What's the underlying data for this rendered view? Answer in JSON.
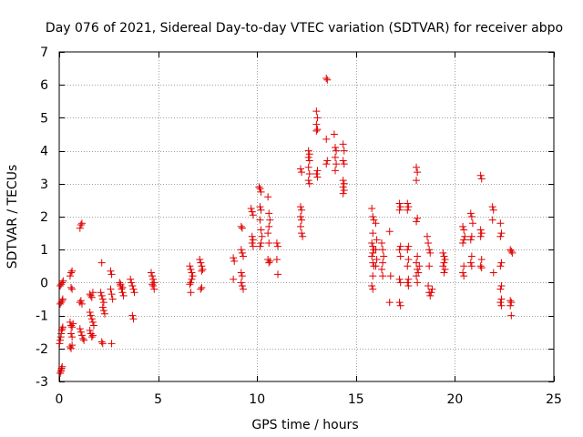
{
  "chart_data": {
    "type": "scatter",
    "title": "Day 076 of 2021, Sidereal Day-to-day VTEC variation (SDTVAR) for receiver abpo",
    "xlabel": "GPS time / hours",
    "ylabel": "SDTVAR / TECUs",
    "xlim": [
      0,
      25
    ],
    "ylim": [
      -3,
      7
    ],
    "xticks": [
      0,
      5,
      10,
      15,
      20,
      25
    ],
    "yticks": [
      -3,
      -2,
      -1,
      0,
      1,
      2,
      3,
      4,
      5,
      6,
      7
    ],
    "xtick_labels": [
      "0",
      "5",
      "10",
      "15",
      "20",
      "25"
    ],
    "ytick_labels": [
      "-3",
      "-2",
      "-1",
      "0",
      "1",
      "2",
      "3",
      "4",
      "5",
      "6",
      "7"
    ],
    "grid": true,
    "marker": "plus",
    "marker_color": "#e00000",
    "series": [
      {
        "name": "SDTVAR",
        "points": [
          [
            0.05,
            -2.75
          ],
          [
            0.08,
            -2.7
          ],
          [
            0.1,
            -2.65
          ],
          [
            0.12,
            -2.6
          ],
          [
            0.15,
            -2.55
          ],
          [
            0.02,
            -1.85
          ],
          [
            0.05,
            -1.75
          ],
          [
            0.08,
            -1.65
          ],
          [
            0.1,
            -1.55
          ],
          [
            0.12,
            -1.45
          ],
          [
            0.15,
            -1.4
          ],
          [
            0.18,
            -1.35
          ],
          [
            0.05,
            -0.65
          ],
          [
            0.1,
            -0.6
          ],
          [
            0.15,
            -0.55
          ],
          [
            0.18,
            -0.5
          ],
          [
            0.05,
            -0.1
          ],
          [
            0.1,
            -0.05
          ],
          [
            0.15,
            0.0
          ],
          [
            0.2,
            0.05
          ],
          [
            0.55,
            0.2
          ],
          [
            0.6,
            0.3
          ],
          [
            0.65,
            0.35
          ],
          [
            0.6,
            -0.15
          ],
          [
            0.65,
            -0.2
          ],
          [
            0.55,
            -1.2
          ],
          [
            0.6,
            -1.3
          ],
          [
            0.65,
            -1.35
          ],
          [
            0.7,
            -1.25
          ],
          [
            0.6,
            -1.55
          ],
          [
            0.65,
            -1.65
          ],
          [
            0.55,
            -1.95
          ],
          [
            0.6,
            -2.0
          ],
          [
            0.65,
            -1.9
          ],
          [
            1.05,
            1.65
          ],
          [
            1.1,
            1.75
          ],
          [
            1.15,
            1.8
          ],
          [
            1.05,
            -0.6
          ],
          [
            1.1,
            -0.55
          ],
          [
            1.15,
            -0.65
          ],
          [
            1.05,
            -1.4
          ],
          [
            1.1,
            -1.5
          ],
          [
            1.15,
            -1.6
          ],
          [
            1.2,
            -1.7
          ],
          [
            1.25,
            -1.75
          ],
          [
            1.55,
            -0.35
          ],
          [
            1.6,
            -0.4
          ],
          [
            1.65,
            -0.45
          ],
          [
            1.7,
            -0.3
          ],
          [
            1.55,
            -0.9
          ],
          [
            1.6,
            -1.0
          ],
          [
            1.65,
            -1.1
          ],
          [
            1.7,
            -1.2
          ],
          [
            1.75,
            -1.3
          ],
          [
            1.55,
            -1.45
          ],
          [
            1.6,
            -1.55
          ],
          [
            1.65,
            -1.65
          ],
          [
            1.7,
            -1.6
          ],
          [
            2.15,
            0.6
          ],
          [
            2.1,
            -0.3
          ],
          [
            2.15,
            -0.4
          ],
          [
            2.2,
            -0.5
          ],
          [
            2.25,
            -0.6
          ],
          [
            2.2,
            -0.75
          ],
          [
            2.25,
            -0.85
          ],
          [
            2.3,
            -0.95
          ],
          [
            2.15,
            -1.8
          ],
          [
            2.2,
            -1.85
          ],
          [
            2.6,
            0.35
          ],
          [
            2.65,
            0.25
          ],
          [
            2.6,
            -0.2
          ],
          [
            2.65,
            -0.35
          ],
          [
            2.7,
            -0.5
          ],
          [
            2.65,
            -1.85
          ],
          [
            3.05,
            0.0
          ],
          [
            3.1,
            -0.1
          ],
          [
            3.15,
            -0.2
          ],
          [
            3.2,
            -0.3
          ],
          [
            3.25,
            -0.4
          ],
          [
            3.1,
            -0.05
          ],
          [
            3.2,
            -0.15
          ],
          [
            3.6,
            0.1
          ],
          [
            3.65,
            0.0
          ],
          [
            3.7,
            -0.1
          ],
          [
            3.75,
            -0.2
          ],
          [
            3.8,
            -0.3
          ],
          [
            3.7,
            -1.0
          ],
          [
            3.75,
            -1.1
          ],
          [
            4.65,
            0.3
          ],
          [
            4.7,
            0.2
          ],
          [
            4.75,
            0.1
          ],
          [
            4.8,
            0.0
          ],
          [
            4.75,
            -0.1
          ],
          [
            4.8,
            -0.2
          ],
          [
            4.7,
            -0.05
          ],
          [
            6.6,
            0.5
          ],
          [
            6.65,
            0.4
          ],
          [
            6.7,
            0.3
          ],
          [
            6.75,
            0.2
          ],
          [
            6.7,
            0.1
          ],
          [
            6.65,
            0.0
          ],
          [
            6.6,
            -0.05
          ],
          [
            6.65,
            -0.3
          ],
          [
            7.1,
            0.7
          ],
          [
            7.15,
            0.6
          ],
          [
            7.2,
            0.5
          ],
          [
            7.25,
            0.4
          ],
          [
            7.2,
            0.35
          ],
          [
            7.15,
            -0.2
          ],
          [
            7.2,
            -0.15
          ],
          [
            8.8,
            0.75
          ],
          [
            8.85,
            0.65
          ],
          [
            8.8,
            0.1
          ],
          [
            9.2,
            1.7
          ],
          [
            9.25,
            1.65
          ],
          [
            9.2,
            1.0
          ],
          [
            9.25,
            0.9
          ],
          [
            9.3,
            0.8
          ],
          [
            9.2,
            0.3
          ],
          [
            9.25,
            0.2
          ],
          [
            9.2,
            0.0
          ],
          [
            9.25,
            -0.1
          ],
          [
            9.3,
            -0.2
          ],
          [
            9.7,
            2.25
          ],
          [
            9.75,
            2.15
          ],
          [
            9.8,
            2.05
          ],
          [
            9.75,
            1.4
          ],
          [
            9.8,
            1.3
          ],
          [
            9.75,
            1.2
          ],
          [
            9.8,
            1.1
          ],
          [
            10.1,
            2.9
          ],
          [
            10.15,
            2.85
          ],
          [
            10.2,
            2.75
          ],
          [
            10.15,
            2.3
          ],
          [
            10.2,
            2.2
          ],
          [
            10.15,
            1.9
          ],
          [
            10.2,
            1.6
          ],
          [
            10.25,
            1.4
          ],
          [
            10.2,
            1.2
          ],
          [
            10.15,
            1.1
          ],
          [
            10.55,
            2.6
          ],
          [
            10.6,
            2.1
          ],
          [
            10.65,
            1.9
          ],
          [
            10.6,
            1.7
          ],
          [
            10.55,
            1.5
          ],
          [
            10.6,
            1.2
          ],
          [
            10.55,
            0.7
          ],
          [
            10.6,
            0.6
          ],
          [
            10.65,
            0.65
          ],
          [
            11.0,
            1.2
          ],
          [
            11.05,
            1.1
          ],
          [
            11.0,
            0.7
          ],
          [
            11.05,
            0.25
          ],
          [
            12.2,
            3.45
          ],
          [
            12.25,
            3.35
          ],
          [
            12.2,
            2.3
          ],
          [
            12.25,
            2.2
          ],
          [
            12.2,
            2.0
          ],
          [
            12.25,
            1.9
          ],
          [
            12.2,
            1.7
          ],
          [
            12.25,
            1.5
          ],
          [
            12.3,
            1.4
          ],
          [
            12.6,
            4.0
          ],
          [
            12.65,
            3.9
          ],
          [
            12.6,
            3.8
          ],
          [
            12.65,
            3.7
          ],
          [
            12.6,
            3.5
          ],
          [
            12.65,
            3.3
          ],
          [
            12.6,
            3.1
          ],
          [
            12.65,
            3.0
          ],
          [
            13.0,
            5.2
          ],
          [
            13.05,
            5.0
          ],
          [
            13.0,
            4.8
          ],
          [
            13.05,
            4.65
          ],
          [
            13.0,
            4.6
          ],
          [
            13.05,
            3.4
          ],
          [
            13.0,
            3.3
          ],
          [
            13.05,
            3.2
          ],
          [
            13.5,
            6.2
          ],
          [
            13.55,
            6.15
          ],
          [
            13.5,
            4.35
          ],
          [
            13.55,
            3.7
          ],
          [
            13.5,
            3.6
          ],
          [
            13.9,
            4.5
          ],
          [
            13.95,
            4.1
          ],
          [
            14.0,
            4.0
          ],
          [
            13.95,
            3.8
          ],
          [
            14.0,
            3.6
          ],
          [
            13.95,
            3.4
          ],
          [
            14.35,
            4.2
          ],
          [
            14.4,
            4.0
          ],
          [
            14.35,
            3.7
          ],
          [
            14.4,
            3.6
          ],
          [
            14.35,
            3.1
          ],
          [
            14.4,
            3.0
          ],
          [
            14.35,
            2.9
          ],
          [
            14.4,
            2.8
          ],
          [
            14.35,
            2.7
          ],
          [
            15.8,
            2.25
          ],
          [
            15.85,
            2.0
          ],
          [
            15.9,
            1.9
          ],
          [
            15.85,
            1.5
          ],
          [
            15.8,
            1.2
          ],
          [
            15.85,
            1.1
          ],
          [
            15.9,
            1.0
          ],
          [
            15.85,
            0.9
          ],
          [
            15.8,
            0.8
          ],
          [
            15.85,
            0.6
          ],
          [
            15.9,
            0.5
          ],
          [
            15.85,
            0.2
          ],
          [
            15.8,
            -0.1
          ],
          [
            15.85,
            -0.2
          ],
          [
            16.0,
            1.8
          ],
          [
            16.05,
            1.3
          ],
          [
            16.0,
            1.0
          ],
          [
            16.05,
            0.7
          ],
          [
            16.0,
            0.5
          ],
          [
            16.3,
            1.2
          ],
          [
            16.35,
            1.0
          ],
          [
            16.4,
            0.8
          ],
          [
            16.35,
            0.6
          ],
          [
            16.3,
            0.4
          ],
          [
            16.35,
            0.2
          ],
          [
            16.7,
            1.55
          ],
          [
            16.75,
            0.2
          ],
          [
            16.7,
            -0.6
          ],
          [
            17.2,
            2.4
          ],
          [
            17.25,
            2.3
          ],
          [
            17.2,
            2.2
          ],
          [
            17.25,
            1.1
          ],
          [
            17.2,
            1.0
          ],
          [
            17.25,
            0.8
          ],
          [
            17.2,
            0.1
          ],
          [
            17.25,
            0.0
          ],
          [
            17.2,
            -0.6
          ],
          [
            17.25,
            -0.7
          ],
          [
            17.6,
            2.4
          ],
          [
            17.65,
            2.3
          ],
          [
            17.6,
            2.2
          ],
          [
            17.65,
            1.1
          ],
          [
            17.6,
            1.0
          ],
          [
            17.65,
            0.7
          ],
          [
            17.6,
            0.5
          ],
          [
            17.65,
            0.1
          ],
          [
            17.6,
            0.0
          ],
          [
            17.65,
            -0.1
          ],
          [
            18.05,
            3.5
          ],
          [
            18.1,
            3.35
          ],
          [
            18.05,
            3.1
          ],
          [
            18.1,
            1.95
          ],
          [
            18.05,
            1.85
          ],
          [
            18.1,
            0.8
          ],
          [
            18.05,
            0.6
          ],
          [
            18.1,
            0.4
          ],
          [
            18.05,
            0.2
          ],
          [
            18.1,
            0.0
          ],
          [
            18.15,
            0.3
          ],
          [
            18.2,
            0.5
          ],
          [
            18.6,
            1.4
          ],
          [
            18.65,
            1.2
          ],
          [
            18.7,
            1.0
          ],
          [
            18.75,
            0.9
          ],
          [
            18.7,
            0.5
          ],
          [
            18.65,
            -0.1
          ],
          [
            18.7,
            -0.3
          ],
          [
            18.75,
            -0.4
          ],
          [
            18.8,
            -0.3
          ],
          [
            18.85,
            -0.2
          ],
          [
            19.4,
            0.9
          ],
          [
            19.45,
            0.8
          ],
          [
            19.5,
            0.7
          ],
          [
            19.45,
            0.6
          ],
          [
            19.4,
            0.5
          ],
          [
            19.45,
            0.3
          ],
          [
            19.5,
            0.4
          ],
          [
            20.4,
            1.7
          ],
          [
            20.45,
            1.6
          ],
          [
            20.5,
            1.4
          ],
          [
            20.45,
            1.3
          ],
          [
            20.4,
            1.2
          ],
          [
            20.45,
            0.5
          ],
          [
            20.4,
            0.3
          ],
          [
            20.45,
            0.2
          ],
          [
            20.8,
            2.1
          ],
          [
            20.85,
            2.0
          ],
          [
            20.9,
            1.8
          ],
          [
            20.85,
            1.4
          ],
          [
            20.8,
            1.3
          ],
          [
            20.85,
            0.8
          ],
          [
            20.8,
            0.6
          ],
          [
            20.85,
            0.5
          ],
          [
            21.3,
            3.25
          ],
          [
            21.35,
            3.15
          ],
          [
            21.3,
            1.6
          ],
          [
            21.35,
            1.5
          ],
          [
            21.3,
            1.4
          ],
          [
            21.35,
            0.7
          ],
          [
            21.3,
            0.5
          ],
          [
            21.35,
            0.45
          ],
          [
            21.9,
            2.3
          ],
          [
            21.95,
            2.2
          ],
          [
            21.9,
            1.9
          ],
          [
            21.95,
            0.3
          ],
          [
            22.3,
            1.8
          ],
          [
            22.35,
            1.5
          ],
          [
            22.3,
            1.4
          ],
          [
            22.35,
            0.6
          ],
          [
            22.3,
            0.5
          ],
          [
            22.35,
            -0.1
          ],
          [
            22.3,
            -0.2
          ],
          [
            22.35,
            -0.5
          ],
          [
            22.3,
            -0.6
          ],
          [
            22.35,
            -0.7
          ],
          [
            22.8,
            1.0
          ],
          [
            22.85,
            0.95
          ],
          [
            22.9,
            0.9
          ],
          [
            22.8,
            -0.55
          ],
          [
            22.85,
            -0.6
          ],
          [
            22.8,
            -0.7
          ],
          [
            22.85,
            -1.0
          ]
        ]
      }
    ]
  }
}
